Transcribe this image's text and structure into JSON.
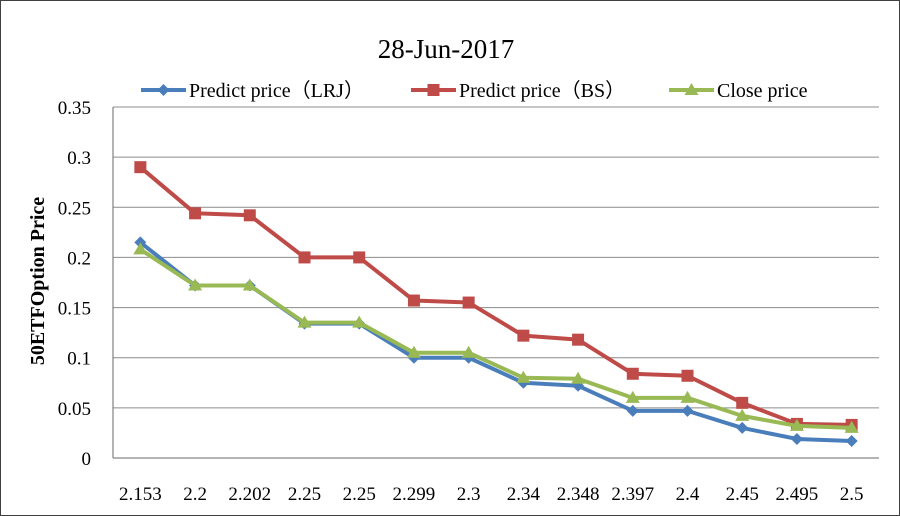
{
  "chart_data": {
    "type": "line",
    "title": "28-Jun-2017",
    "xlabel": "",
    "ylabel": "50ETFOption Price",
    "categories": [
      "2.153",
      "2.2",
      "2.202",
      "2.25",
      "2.25",
      "2.299",
      "2.3",
      "2.34",
      "2.348",
      "2.397",
      "2.4",
      "2.45",
      "2.495",
      "2.5"
    ],
    "ylim": [
      0,
      0.35
    ],
    "yticks": [
      "0",
      "0.05",
      "0.1",
      "0.15",
      "0.2",
      "0.25",
      "0.3",
      "0.35"
    ],
    "grid": true,
    "legend_position": "top",
    "series": [
      {
        "name": "Predict price（LRJ）",
        "color": "#4a7ebb",
        "marker": "diamond",
        "values": [
          0.215,
          0.172,
          0.172,
          0.134,
          0.134,
          0.1,
          0.1,
          0.075,
          0.072,
          0.047,
          0.047,
          0.03,
          0.019,
          0.017
        ]
      },
      {
        "name": "Predict price（BS）",
        "color": "#be4b48",
        "marker": "square",
        "values": [
          0.29,
          0.244,
          0.242,
          0.2,
          0.2,
          0.157,
          0.155,
          0.122,
          0.118,
          0.084,
          0.082,
          0.055,
          0.034,
          0.033
        ]
      },
      {
        "name": "Close price",
        "color": "#98b954",
        "marker": "triangle",
        "values": [
          0.208,
          0.172,
          0.172,
          0.135,
          0.135,
          0.105,
          0.105,
          0.08,
          0.079,
          0.06,
          0.06,
          0.042,
          0.032,
          0.03
        ]
      }
    ]
  }
}
